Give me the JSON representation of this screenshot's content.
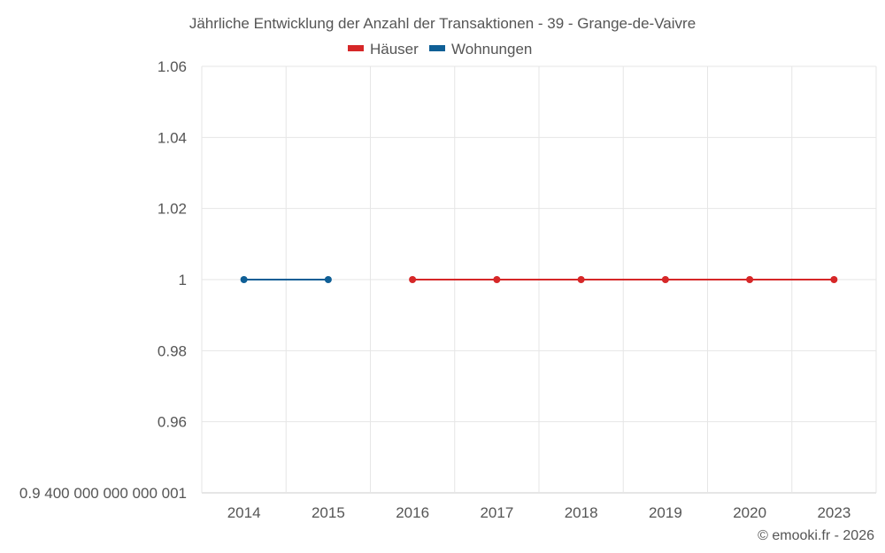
{
  "chart_data": {
    "type": "line",
    "title": "Jährliche Entwicklung der Anzahl der Transaktionen - 39 - Grange-de-Vaivre",
    "categories": [
      "2014",
      "2015",
      "2016",
      "2017",
      "2018",
      "2019",
      "2020",
      "2023"
    ],
    "y_ticks": [
      {
        "value": 0.94,
        "label": "0.9 400 000 000 000 001"
      },
      {
        "value": 0.96,
        "label": "0.96"
      },
      {
        "value": 0.98,
        "label": "0.98"
      },
      {
        "value": 1.0,
        "label": "1"
      },
      {
        "value": 1.02,
        "label": "1.02"
      },
      {
        "value": 1.04,
        "label": "1.04"
      },
      {
        "value": 1.06,
        "label": "1.06"
      }
    ],
    "ylim": [
      0.94,
      1.06
    ],
    "grid": true,
    "legend_position": "top-center",
    "series": [
      {
        "name": "Häuser",
        "color": "#d62728",
        "values": [
          null,
          null,
          1,
          1,
          1,
          1,
          1,
          1
        ]
      },
      {
        "name": "Wohnungen",
        "color": "#0f5f96",
        "values": [
          1,
          1,
          null,
          null,
          null,
          null,
          null,
          null
        ]
      }
    ]
  },
  "credit": "© emooki.fr - 2026"
}
